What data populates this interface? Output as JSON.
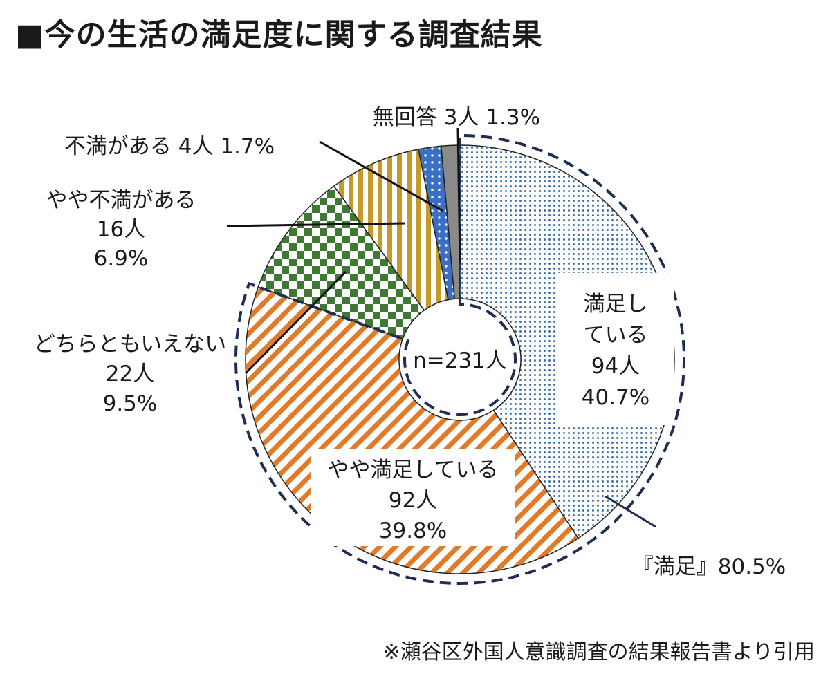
{
  "title": "■今の生活の満足度に関する調査結果",
  "note": "※瀬谷区外国人意識調査の結果報告書より引用",
  "chart_data": {
    "type": "pie",
    "subtype": "donut",
    "center_label": "n=231人",
    "total": 231,
    "start": "12 o'clock, clockwise",
    "slices": [
      {
        "label": "満足している",
        "count": 94,
        "count_label": "94人",
        "percent": 40.7,
        "percent_label": "40.7%",
        "color": "#3a6fb0",
        "pattern": "fine-dots"
      },
      {
        "label": "やや満足している",
        "count": 92,
        "count_label": "92人",
        "percent": 39.8,
        "percent_label": "39.8%",
        "color": "#e07b2a",
        "pattern": "diagonal-stripes"
      },
      {
        "label": "どちらともいえない",
        "count": 22,
        "count_label": "22人",
        "percent": 9.5,
        "percent_label": "9.5%",
        "color": "#3f7a35",
        "pattern": "checker"
      },
      {
        "label": "やや不満がある",
        "count": 16,
        "count_label": "16人",
        "percent": 6.9,
        "percent_label": "6.9%",
        "color": "#c49a2a",
        "pattern": "vertical-stripes"
      },
      {
        "label": "不満がある",
        "count": 4,
        "count_label": "4人",
        "percent": 1.7,
        "percent_label": "1.7%",
        "color": "#3a6fc4",
        "pattern": "dots"
      },
      {
        "label": "無回答",
        "count": 3,
        "count_label": "3人",
        "percent": 1.3,
        "percent_label": "1.3%",
        "color": "#8a8a8a",
        "pattern": "solid"
      }
    ],
    "group_annotation": {
      "label": "『満足』80.5%",
      "percent": 80.5,
      "color": "#1f2d52"
    }
  }
}
